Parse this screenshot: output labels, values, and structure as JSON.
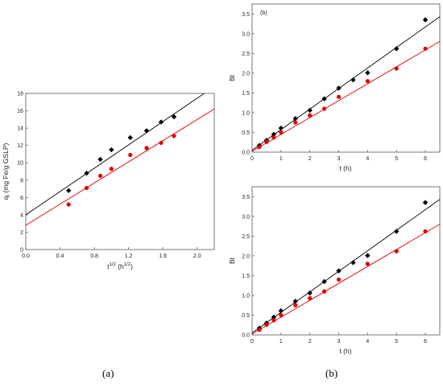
{
  "captions": {
    "a": "(a)",
    "b": "(b)"
  },
  "colors": {
    "series1": "#000000",
    "series2": "#e00000",
    "frame": "#555555"
  },
  "chart_data": [
    {
      "id": "a",
      "type": "scatter",
      "xlabel": "t",
      "xlabel_sup": "1/2",
      "xlabel_unit": " (h",
      "xlabel_unit_sup": "1/2",
      "xlabel_close": ")",
      "ylabel": "q",
      "ylabel_sub": "t",
      "ylabel_rest": " (mg Fe/g GSLP)",
      "xlim": [
        0,
        2.2
      ],
      "ylim": [
        0,
        18
      ],
      "xticks": [
        0.0,
        0.4,
        0.8,
        1.2,
        1.6,
        2.0
      ],
      "xtick_labels": [
        "0.0",
        "0.4",
        "0.8",
        "1.2",
        "1.6",
        "2.0"
      ],
      "yticks": [
        0,
        2,
        4,
        6,
        8,
        10,
        12,
        14,
        16,
        18
      ],
      "ytick_labels": [
        "0",
        "2",
        "4",
        "6",
        "8",
        "10",
        "12",
        "14",
        "16",
        "18"
      ],
      "series": [
        {
          "marker": "diamond",
          "color": "#000000",
          "x": [
            0.5,
            0.71,
            0.87,
            1.0,
            1.22,
            1.41,
            1.58,
            1.73
          ],
          "y": [
            6.8,
            8.8,
            10.4,
            11.5,
            12.9,
            13.7,
            14.7,
            15.3
          ],
          "fit": {
            "intercept": 4.0,
            "slope": 6.72
          }
        },
        {
          "marker": "circle",
          "color": "#e00000",
          "x": [
            0.5,
            0.71,
            0.87,
            1.0,
            1.22,
            1.41,
            1.58,
            1.73
          ],
          "y": [
            5.2,
            7.1,
            8.5,
            9.3,
            10.9,
            11.7,
            12.3,
            13.1
          ],
          "fit": {
            "intercept": 2.8,
            "slope": 6.09
          }
        }
      ]
    },
    {
      "id": "b-top",
      "type": "scatter",
      "panel_label": "(b)",
      "xlabel": "t (h)",
      "ylabel": "Bt",
      "xlim": [
        0,
        6.5
      ],
      "ylim": [
        0,
        3.75
      ],
      "xticks": [
        0,
        1,
        2,
        3,
        4,
        5,
        6
      ],
      "xtick_labels": [
        "0",
        "1",
        "2",
        "3",
        "4",
        "5",
        "6"
      ],
      "yticks": [
        0.0,
        0.5,
        1.0,
        1.5,
        2.0,
        2.5,
        3.0,
        3.5
      ],
      "ytick_labels": [
        "0.0",
        "0.5",
        "1.0",
        "1.5",
        "2.0",
        "2.5",
        "3.0",
        "3.5"
      ],
      "series": [
        {
          "marker": "diamond",
          "color": "#000000",
          "x": [
            0.25,
            0.5,
            0.75,
            1.0,
            1.5,
            2.0,
            2.5,
            3.0,
            3.5,
            4.0,
            5.0,
            6.0
          ],
          "y": [
            0.17,
            0.3,
            0.45,
            0.61,
            0.85,
            1.06,
            1.35,
            1.62,
            1.83,
            2.01,
            2.62,
            3.35
          ],
          "fit": {
            "intercept": 0.05,
            "slope": 0.52
          }
        },
        {
          "marker": "circle",
          "color": "#e00000",
          "x": [
            0.25,
            0.5,
            0.75,
            1.0,
            1.5,
            2.0,
            2.5,
            3.0,
            4.0,
            5.0,
            6.0
          ],
          "y": [
            0.13,
            0.26,
            0.37,
            0.5,
            0.75,
            0.93,
            1.1,
            1.4,
            1.8,
            2.12,
            2.62
          ],
          "fit": {
            "intercept": 0.02,
            "slope": 0.428
          }
        }
      ]
    },
    {
      "id": "b-bottom",
      "type": "scatter",
      "xlabel": "t (h)",
      "ylabel": "Bt",
      "xlim": [
        0,
        6.5
      ],
      "ylim": [
        0,
        3.75
      ],
      "xticks": [
        0,
        1,
        2,
        3,
        4,
        5,
        6
      ],
      "xtick_labels": [
        "0",
        "1",
        "2",
        "3",
        "4",
        "5",
        "6"
      ],
      "yticks": [
        0.0,
        0.5,
        1.0,
        1.5,
        2.0,
        2.5,
        3.0,
        3.5
      ],
      "ytick_labels": [
        "0.0",
        "0.5",
        "1.0",
        "1.5",
        "2.0",
        "2.5",
        "3.0",
        "3.5"
      ],
      "series": [
        {
          "marker": "diamond",
          "color": "#000000",
          "x": [
            0.25,
            0.5,
            0.75,
            1.0,
            1.5,
            2.0,
            2.5,
            3.0,
            3.5,
            4.0,
            5.0,
            6.0
          ],
          "y": [
            0.17,
            0.3,
            0.45,
            0.61,
            0.85,
            1.06,
            1.35,
            1.62,
            1.83,
            2.01,
            2.62,
            3.35
          ],
          "fit": {
            "intercept": 0.05,
            "slope": 0.52
          }
        },
        {
          "marker": "circle",
          "color": "#e00000",
          "x": [
            0.25,
            0.5,
            0.75,
            1.0,
            1.5,
            2.0,
            2.5,
            3.0,
            4.0,
            5.0,
            6.0
          ],
          "y": [
            0.13,
            0.26,
            0.37,
            0.5,
            0.75,
            0.93,
            1.1,
            1.4,
            1.8,
            2.12,
            2.62
          ],
          "fit": {
            "intercept": 0.02,
            "slope": 0.428
          }
        }
      ]
    }
  ]
}
